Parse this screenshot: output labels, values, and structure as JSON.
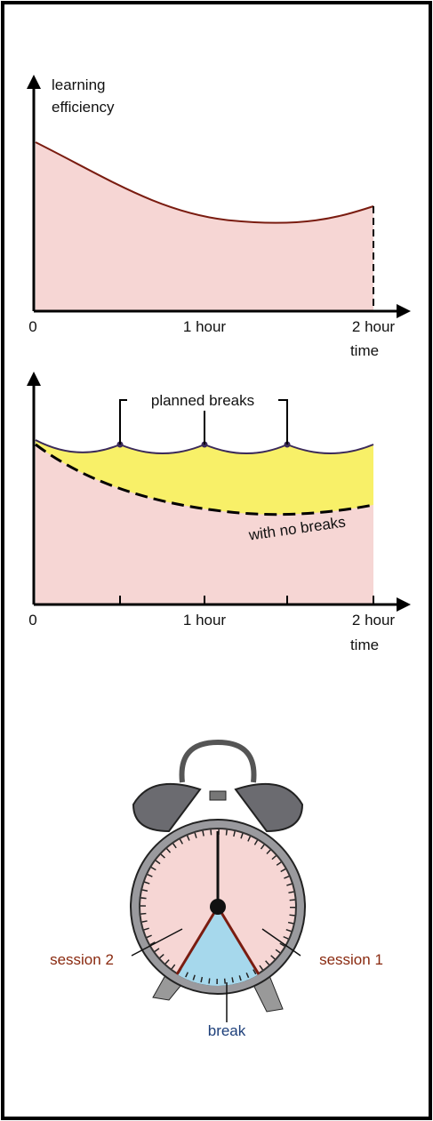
{
  "graph_1": {
    "y_axis_label": [
      "learning",
      "efficiency"
    ],
    "x_tick_labels": [
      "0",
      "1 hour",
      "2 hour"
    ],
    "x_axis_label": "time"
  },
  "graph_2": {
    "annotation_top": "planned breaks",
    "annotation_bottom": "with no breaks",
    "x_tick_labels": [
      "0",
      "1 hour",
      "2 hour"
    ],
    "x_axis_label": "time"
  },
  "clock": {
    "session_2": "session 2",
    "session_1": "session 1",
    "break": "break"
  }
}
